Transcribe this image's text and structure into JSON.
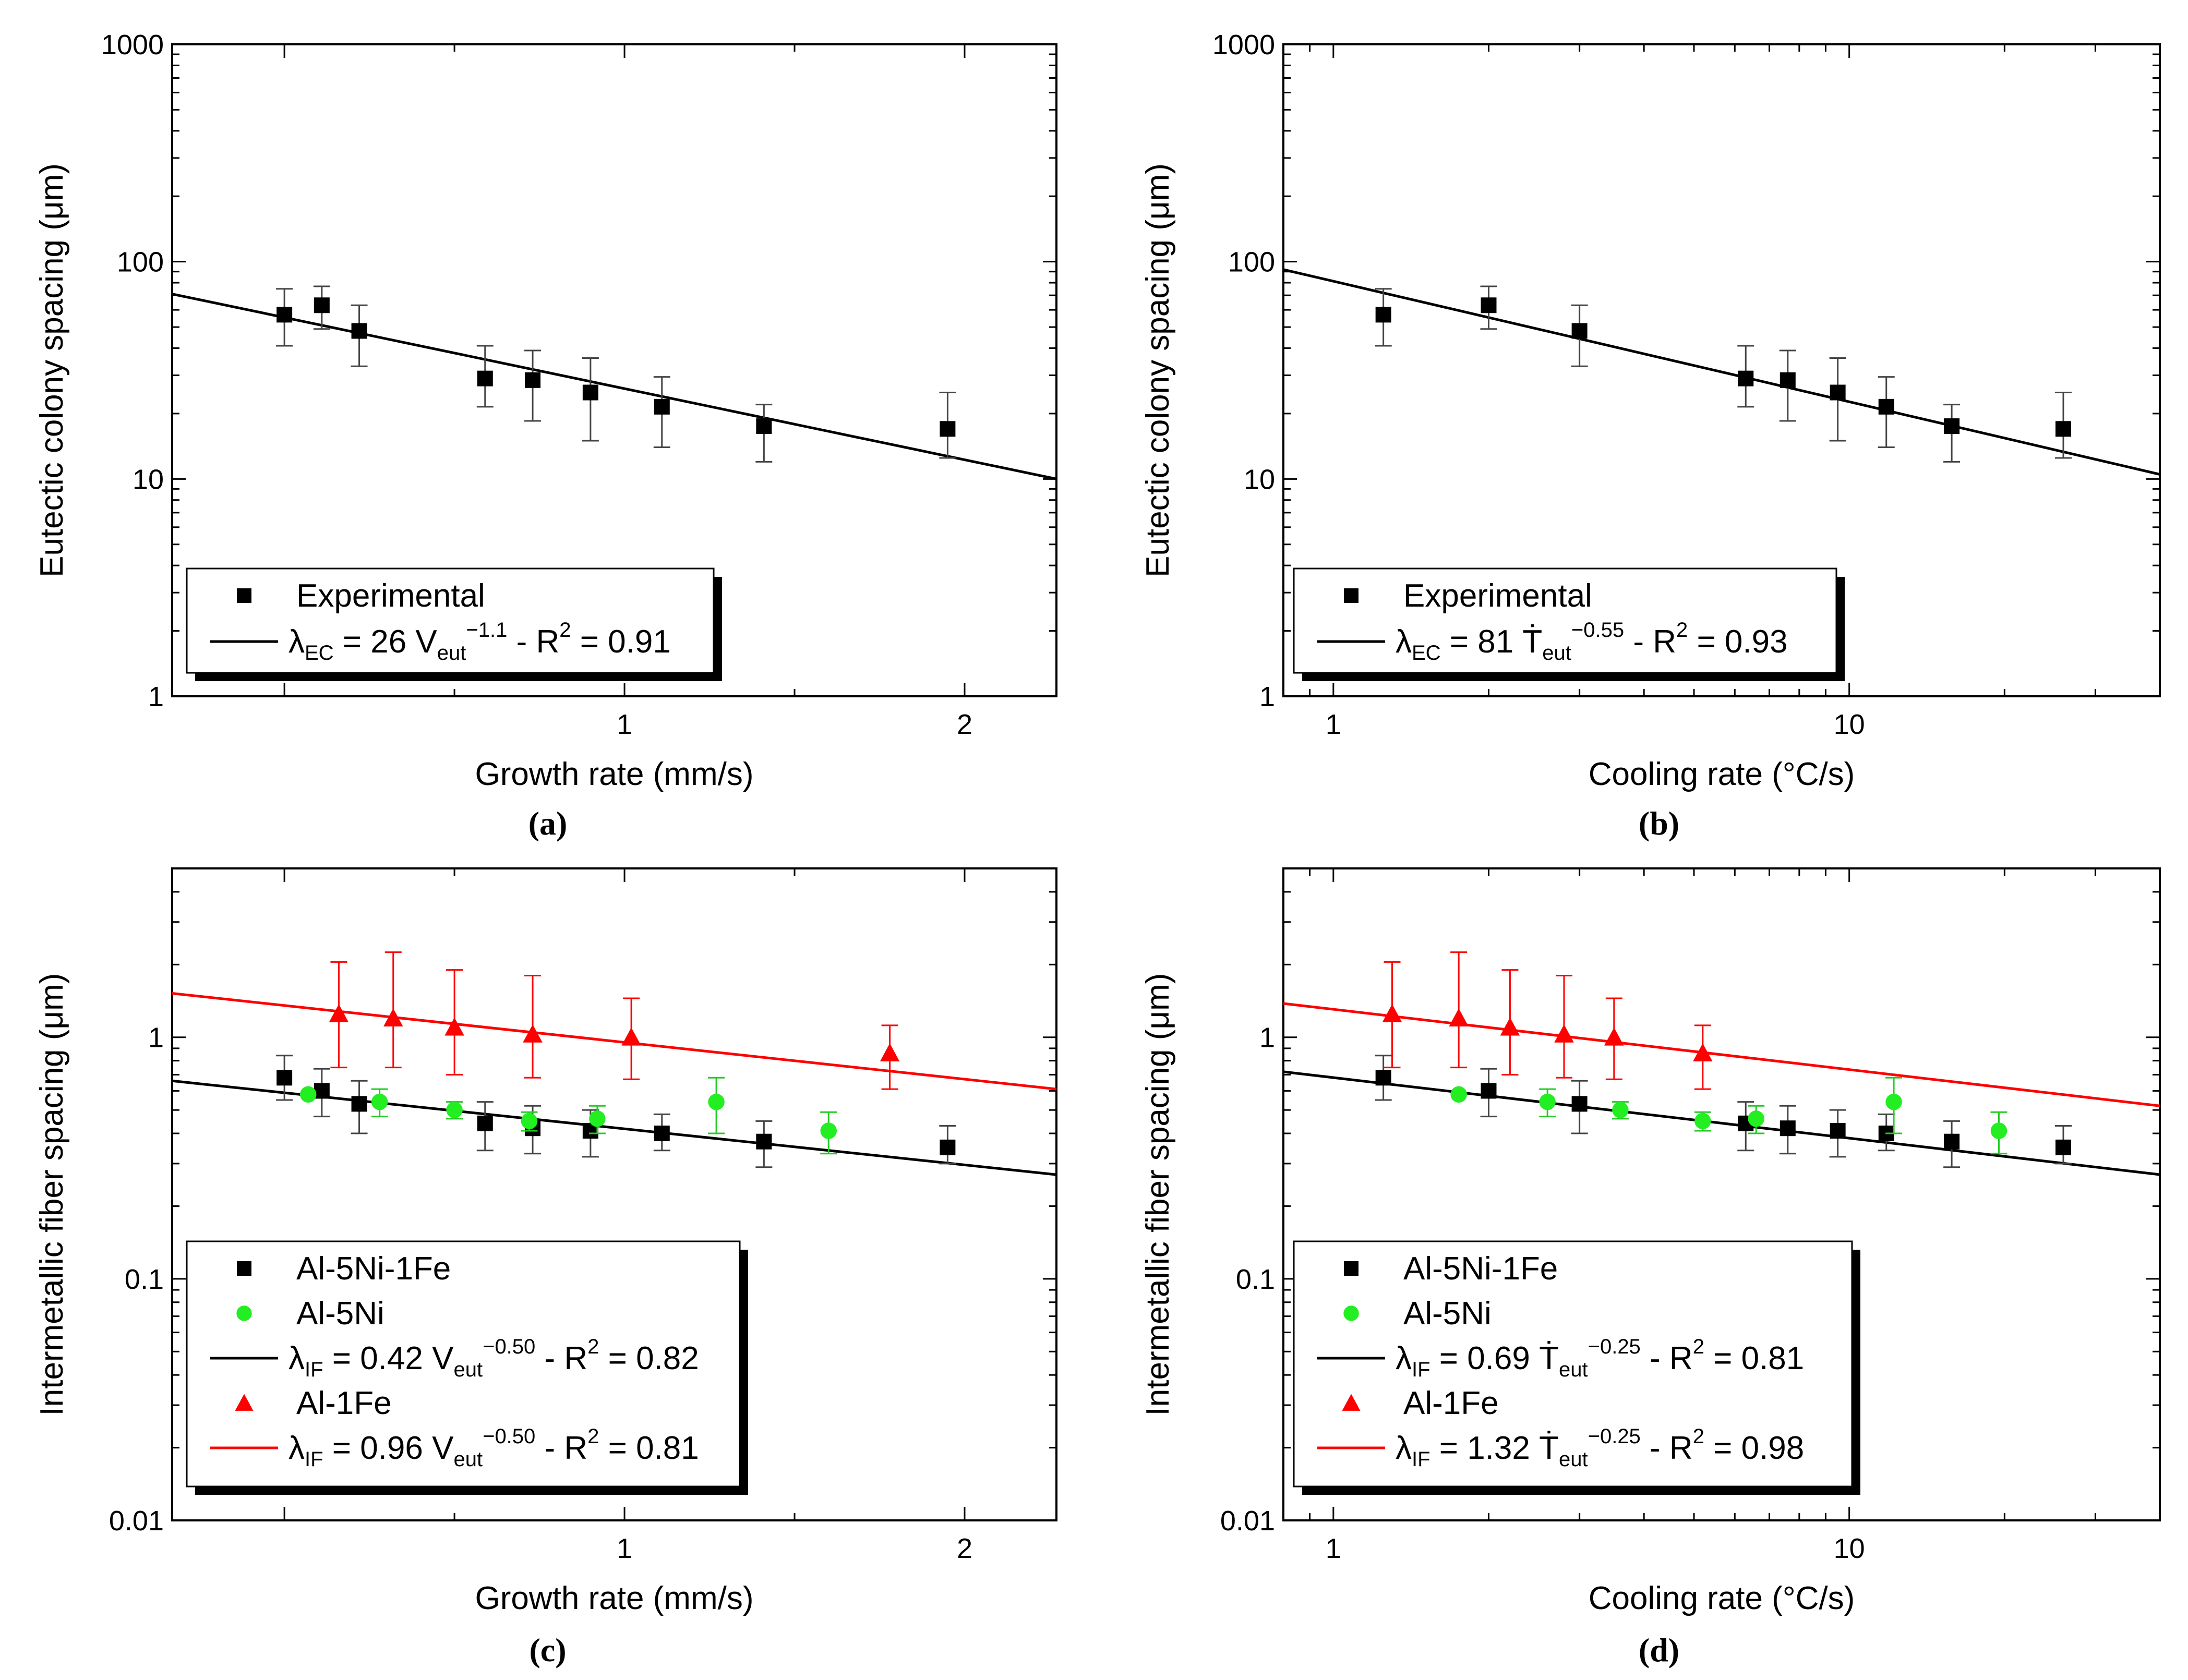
{
  "figure": {
    "panel_labels": [
      "(a)",
      "(b)",
      "(c)",
      "(d)"
    ]
  },
  "chart_data": [
    {
      "panel": "(a)",
      "type": "scatter",
      "xscale": "linear",
      "yscale": "log",
      "xlabel": "Growth rate (mm/s)",
      "ylabel": "Eutectic colony spacing (μm)",
      "xlim": [
        -0.33,
        2.27
      ],
      "ylim": [
        1,
        1000
      ],
      "xticks": [
        1,
        2
      ],
      "yticks": [
        1,
        10,
        100,
        1000
      ],
      "series": [
        {
          "name": "Experimental",
          "marker": "square",
          "color": "#000000",
          "x": [
            0.0,
            0.11,
            0.22,
            0.59,
            0.73,
            0.9,
            1.11,
            1.41,
            1.95
          ],
          "y": [
            57,
            63,
            48,
            29,
            28.5,
            25,
            21.5,
            17.5,
            17
          ],
          "err_low": [
            41,
            49,
            33,
            21.5,
            18.5,
            15,
            14,
            12,
            12.5
          ],
          "err_high": [
            75,
            77,
            63,
            41,
            39,
            36,
            29.5,
            22,
            25
          ]
        }
      ],
      "fits": [
        {
          "name": "λEC = 26 Veut^-1.1 - R² = 0.91",
          "color": "#000000",
          "x": [
            -0.33,
            2.27
          ],
          "y": [
            71,
            10
          ]
        }
      ],
      "legend": {
        "position": "bottom-left",
        "entries": [
          {
            "kind": "marker",
            "marker": "square",
            "color": "#000000",
            "label": "Experimental"
          },
          {
            "kind": "line",
            "color": "#000000",
            "parts": {
              "sym": "λ",
              "sub": "EC",
              "mid": " = 26 V",
              "sub2": "eut",
              "sup": "−1.1",
              "end": " - R",
              "sup2": "2",
              "tail": " = 0.91"
            }
          }
        ]
      }
    },
    {
      "panel": "(b)",
      "type": "scatter",
      "xscale": "log",
      "yscale": "log",
      "xlabel": "Cooling rate (°C/s)",
      "ylabel": "Eutectic colony spacing (μm)",
      "xlim": [
        0.8,
        40
      ],
      "ylim": [
        1,
        1000
      ],
      "xticks": [
        1,
        10
      ],
      "yticks": [
        1,
        10,
        100,
        1000
      ],
      "series": [
        {
          "name": "Experimental",
          "marker": "square",
          "color": "#000000",
          "x": [
            1.25,
            2.0,
            3.0,
            6.3,
            7.6,
            9.5,
            11.8,
            15.8,
            26
          ],
          "y": [
            57,
            63,
            48,
            29,
            28.5,
            25,
            21.5,
            17.5,
            17
          ],
          "err_low": [
            41,
            49,
            33,
            21.5,
            18.5,
            15,
            14,
            12,
            12.5
          ],
          "err_high": [
            75,
            77,
            63,
            41,
            39,
            36,
            29.5,
            22,
            25
          ]
        }
      ],
      "fits": [
        {
          "name": "λEC = 81 Ṫeut^-0.55 - R² = 0.93",
          "color": "#000000",
          "x": [
            0.8,
            40
          ],
          "y": [
            92,
            10.5
          ]
        }
      ],
      "legend": {
        "position": "bottom-left",
        "entries": [
          {
            "kind": "marker",
            "marker": "square",
            "color": "#000000",
            "label": "Experimental"
          },
          {
            "kind": "line",
            "color": "#000000",
            "parts": {
              "sym": "λ",
              "sub": "EC",
              "mid": " = 81 Ṫ",
              "sub2": "eut",
              "sup": "−0.55",
              "end": " - R",
              "sup2": "2",
              "tail": " = 0.93"
            }
          }
        ]
      }
    },
    {
      "panel": "(c)",
      "type": "scatter",
      "xscale": "linear",
      "yscale": "log",
      "xlabel": "Growth rate (mm/s)",
      "ylabel": "Intermetallic fiber spacing (μm)",
      "xlim": [
        -0.33,
        2.27
      ],
      "ylim": [
        0.01,
        5
      ],
      "xticks": [
        1,
        2
      ],
      "yticks": [
        0.01,
        0.1,
        1
      ],
      "series": [
        {
          "name": "Al-5Ni-1Fe",
          "marker": "square",
          "color": "#000000",
          "x": [
            0.0,
            0.11,
            0.22,
            0.59,
            0.73,
            0.9,
            1.11,
            1.41,
            1.95
          ],
          "y": [
            0.68,
            0.6,
            0.53,
            0.44,
            0.42,
            0.41,
            0.4,
            0.37,
            0.35
          ],
          "err_low": [
            0.55,
            0.47,
            0.4,
            0.34,
            0.33,
            0.32,
            0.34,
            0.29,
            0.3
          ],
          "err_high": [
            0.84,
            0.74,
            0.66,
            0.54,
            0.52,
            0.5,
            0.48,
            0.45,
            0.43
          ]
        },
        {
          "name": "Al-5Ni",
          "marker": "circle",
          "color": "#22ee22",
          "x": [
            0.07,
            0.28,
            0.5,
            0.72,
            0.92,
            1.27,
            1.6
          ],
          "y": [
            0.58,
            0.54,
            0.5,
            0.45,
            0.46,
            0.54,
            0.41
          ],
          "err_low": [
            0.58,
            0.47,
            0.46,
            0.41,
            0.4,
            0.4,
            0.33
          ],
          "err_high": [
            0.58,
            0.61,
            0.54,
            0.49,
            0.52,
            0.68,
            0.49
          ]
        },
        {
          "name": "Al-1Fe",
          "marker": "triangle",
          "color": "#ff0000",
          "x": [
            0.16,
            0.32,
            0.5,
            0.73,
            1.02,
            1.78
          ],
          "y": [
            1.25,
            1.2,
            1.1,
            1.03,
            1.0,
            0.86
          ],
          "err_low": [
            0.75,
            0.75,
            0.7,
            0.68,
            0.67,
            0.61
          ],
          "err_high": [
            2.05,
            2.25,
            1.9,
            1.8,
            1.45,
            1.12
          ]
        }
      ],
      "fits": [
        {
          "name": "λIF = 0.42 Veut^-0.50 - R² = 0.82",
          "color": "#000000",
          "x": [
            -0.33,
            2.27
          ],
          "y": [
            0.66,
            0.27
          ]
        },
        {
          "name": "λIF = 0.96 Veut^-0.50 - R² = 0.81",
          "color": "#ff0000",
          "x": [
            -0.33,
            2.27
          ],
          "y": [
            1.52,
            0.61
          ]
        }
      ],
      "legend": {
        "position": "bottom-left",
        "entries": [
          {
            "kind": "marker",
            "marker": "square",
            "color": "#000000",
            "label": "Al-5Ni-1Fe"
          },
          {
            "kind": "marker",
            "marker": "circle",
            "color": "#22ee22",
            "label": "Al-5Ni"
          },
          {
            "kind": "line",
            "color": "#000000",
            "parts": {
              "sym": "λ",
              "sub": "IF",
              "mid": " = 0.42 V",
              "sub2": "eut",
              "sup": "−0.50",
              "end": " - R",
              "sup2": "2",
              "tail": " = 0.82"
            }
          },
          {
            "kind": "marker",
            "marker": "triangle",
            "color": "#ff0000",
            "label": "Al-1Fe"
          },
          {
            "kind": "line",
            "color": "#ff0000",
            "parts": {
              "sym": "λ",
              "sub": "IF",
              "mid": " = 0.96 V",
              "sub2": "eut",
              "sup": "−0.50",
              "end": " - R",
              "sup2": "2",
              "tail": " = 0.81"
            }
          }
        ]
      }
    },
    {
      "panel": "(d)",
      "type": "scatter",
      "xscale": "log",
      "yscale": "log",
      "xlabel": "Cooling rate (°C/s)",
      "ylabel": "Intermetallic fiber spacing (μm)",
      "xlim": [
        0.8,
        40
      ],
      "ylim": [
        0.01,
        5
      ],
      "xticks": [
        1,
        10
      ],
      "yticks": [
        0.01,
        0.1,
        1
      ],
      "series": [
        {
          "name": "Al-5Ni-1Fe",
          "marker": "square",
          "color": "#000000",
          "x": [
            1.25,
            2.0,
            3.0,
            6.3,
            7.6,
            9.5,
            11.8,
            15.8,
            26
          ],
          "y": [
            0.68,
            0.6,
            0.53,
            0.44,
            0.42,
            0.41,
            0.4,
            0.37,
            0.35
          ],
          "err_low": [
            0.55,
            0.47,
            0.4,
            0.34,
            0.33,
            0.32,
            0.34,
            0.29,
            0.3
          ],
          "err_high": [
            0.84,
            0.74,
            0.66,
            0.54,
            0.52,
            0.5,
            0.48,
            0.45,
            0.43
          ]
        },
        {
          "name": "Al-5Ni",
          "marker": "circle",
          "color": "#22ee22",
          "x": [
            1.75,
            2.6,
            3.6,
            5.2,
            6.6,
            12.2,
            19.5
          ],
          "y": [
            0.58,
            0.54,
            0.5,
            0.45,
            0.46,
            0.54,
            0.41
          ],
          "err_low": [
            0.58,
            0.47,
            0.46,
            0.41,
            0.4,
            0.4,
            0.33
          ],
          "err_high": [
            0.58,
            0.61,
            0.54,
            0.49,
            0.52,
            0.68,
            0.49
          ]
        },
        {
          "name": "Al-1Fe",
          "marker": "triangle",
          "color": "#ff0000",
          "x": [
            1.3,
            1.75,
            2.2,
            2.8,
            3.5,
            5.2
          ],
          "y": [
            1.25,
            1.2,
            1.1,
            1.03,
            1.0,
            0.86
          ],
          "err_low": [
            0.75,
            0.75,
            0.7,
            0.68,
            0.67,
            0.61
          ],
          "err_high": [
            2.05,
            2.25,
            1.9,
            1.8,
            1.45,
            1.12
          ]
        }
      ],
      "fits": [
        {
          "name": "λIF = 0.69 Ṫeut^-0.25 - R² = 0.81",
          "color": "#000000",
          "x": [
            0.8,
            40
          ],
          "y": [
            0.72,
            0.27
          ]
        },
        {
          "name": "λIF = 1.32 Ṫeut^-0.25 - R² = 0.98",
          "color": "#ff0000",
          "x": [
            0.8,
            40
          ],
          "y": [
            1.38,
            0.52
          ]
        }
      ],
      "legend": {
        "position": "bottom-left",
        "entries": [
          {
            "kind": "marker",
            "marker": "square",
            "color": "#000000",
            "label": "Al-5Ni-1Fe"
          },
          {
            "kind": "marker",
            "marker": "circle",
            "color": "#22ee22",
            "label": "Al-5Ni"
          },
          {
            "kind": "line",
            "color": "#000000",
            "parts": {
              "sym": "λ",
              "sub": "IF",
              "mid": " = 0.69 Ṫ",
              "sub2": "eut",
              "sup": "−0.25",
              "end": " - R",
              "sup2": "2",
              "tail": " = 0.81"
            }
          },
          {
            "kind": "marker",
            "marker": "triangle",
            "color": "#ff0000",
            "label": "Al-1Fe"
          },
          {
            "kind": "line",
            "color": "#ff0000",
            "parts": {
              "sym": "λ",
              "sub": "IF",
              "mid": " = 1.32 Ṫ",
              "sub2": "eut",
              "sup": "−0.25",
              "end": " - R",
              "sup2": "2",
              "tail": " = 0.98"
            }
          }
        ]
      }
    }
  ]
}
